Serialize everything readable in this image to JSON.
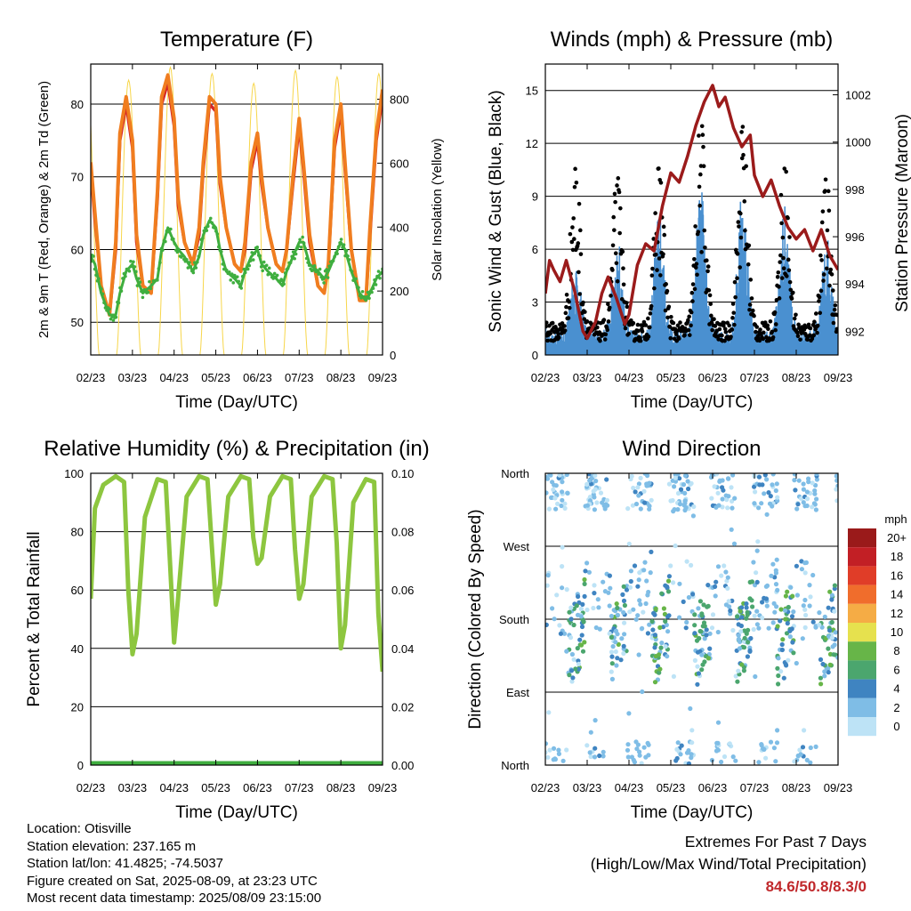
{
  "x_ticks": [
    "02/23",
    "03/23",
    "04/23",
    "05/23",
    "06/23",
    "07/23",
    "08/23",
    "09/23"
  ],
  "colors": {
    "temp_2m": "#d42525",
    "temp_9m": "#f07d1f",
    "dewpoint": "#3fae3f",
    "solar": "#f7d64a",
    "wind": "#4a90d0",
    "gust": "#000000",
    "pressure": "#9b1b1b",
    "rh": "#8dc63f",
    "rain": "#3fae3f"
  },
  "chart_data": [
    {
      "type": "line",
      "title": "Temperature (F)",
      "xlabel": "Time (Day/UTC)",
      "ylabel": "2m & 9m T (Red, Orange) & 2m Td (Green)",
      "y2label": "Solar Insolation (Yellow)",
      "ylim": [
        45.5,
        85.5
      ],
      "y2lim": [
        0,
        910
      ],
      "yticks": [
        50,
        60,
        70,
        80
      ],
      "y2ticks": [
        0,
        200,
        400,
        600,
        800
      ],
      "x": [
        0,
        0.1,
        0.25,
        0.45,
        0.6,
        0.7,
        0.85,
        1,
        1.1,
        1.25,
        1.45,
        1.6,
        1.7,
        1.85,
        2,
        2.1,
        2.25,
        2.45,
        2.6,
        2.7,
        2.85,
        3,
        3.1,
        3.25,
        3.45,
        3.6,
        3.7,
        3.85,
        4,
        4.1,
        4.25,
        4.45,
        4.6,
        4.7,
        4.85,
        5,
        5.1,
        5.25,
        5.45,
        5.6,
        5.7,
        5.85,
        6,
        6.1,
        6.25,
        6.45,
        6.6,
        6.7,
        6.85,
        7
      ],
      "series": [
        {
          "name": "2m T",
          "values": [
            72,
            65,
            55,
            51,
            61,
            76,
            81,
            75,
            62,
            55,
            54,
            68,
            81,
            84,
            78,
            67,
            61,
            58,
            63,
            72,
            81,
            80,
            70,
            63,
            58,
            57,
            61,
            72,
            76,
            70,
            63,
            58,
            57,
            60,
            70,
            78,
            72,
            62,
            55,
            54,
            58,
            75,
            80,
            72,
            60,
            53,
            53,
            63,
            76,
            82
          ]
        },
        {
          "name": "9m T",
          "values": [
            71,
            64,
            55,
            51,
            60,
            75,
            80,
            74,
            61,
            55,
            54,
            67,
            80,
            83,
            77,
            66,
            61,
            58,
            62,
            71,
            80,
            79,
            69,
            63,
            58,
            57,
            60,
            71,
            75,
            69,
            63,
            58,
            57,
            60,
            69,
            77,
            71,
            61,
            55,
            54,
            58,
            74,
            79,
            71,
            60,
            53,
            53,
            62,
            75,
            81
          ]
        },
        {
          "name": "2m Td",
          "values": [
            59,
            58,
            54,
            51,
            51,
            54,
            57,
            58,
            56,
            54,
            55,
            56,
            60,
            63,
            61,
            60,
            59,
            57,
            59,
            62,
            64,
            63,
            60,
            57,
            56,
            55,
            57,
            59,
            60,
            58,
            57,
            56,
            55,
            57,
            59,
            61,
            61,
            58,
            57,
            56,
            57,
            59,
            61,
            60,
            57,
            54,
            53,
            54,
            56,
            57
          ]
        }
      ]
    },
    {
      "type": "line",
      "title": "Winds (mph) & Pressure (mb)",
      "xlabel": "Time (Day/UTC)",
      "ylabel": "Sonic Wind & Gust (Blue, Black)",
      "y2label": "Station Pressure (Maroon)",
      "ylim": [
        0,
        16.5
      ],
      "y2lim": [
        991,
        1003.3
      ],
      "yticks": [
        0,
        3,
        6,
        9,
        12,
        15
      ],
      "y2ticks": [
        992,
        994,
        996,
        998,
        1000,
        1002
      ],
      "pressure": {
        "x": [
          0,
          0.1,
          0.2,
          0.35,
          0.5,
          0.7,
          0.9,
          1,
          1.2,
          1.35,
          1.5,
          1.7,
          1.9,
          2,
          2.2,
          2.4,
          2.6,
          2.8,
          3,
          3.2,
          3.4,
          3.6,
          3.8,
          4,
          4.15,
          4.3,
          4.5,
          4.7,
          4.9,
          5,
          5.2,
          5.4,
          5.6,
          5.8,
          6,
          6.2,
          6.4,
          6.6,
          6.8,
          7
        ],
        "values": [
          993.6,
          995,
          994.6,
          994.1,
          995,
          993.7,
          992,
          991.7,
          992.4,
          993.6,
          994.3,
          993.4,
          992.3,
          992.7,
          994.8,
          995.7,
          995.4,
          997.3,
          998.7,
          998.3,
          999.4,
          1000.7,
          1001.7,
          1002.4,
          1001.5,
          1001.9,
          1000.6,
          999.8,
          1000.3,
          998.6,
          997.7,
          998.4,
          997.3,
          996.4,
          995.9,
          996.3,
          995.4,
          996.3,
          995.2,
          994.6
        ]
      },
      "wind_day_peaks": [
        5,
        6,
        7,
        8.5,
        8.5,
        7.5,
        6,
        6
      ],
      "gust_day_peaks": [
        10,
        9,
        10,
        12,
        12,
        10,
        9,
        8
      ]
    },
    {
      "type": "line",
      "title": "Relative Humidity (%) & Precipitation (in)",
      "xlabel": "Time (Day/UTC)",
      "ylabel": "Percent & Total Rainfall",
      "ylim": [
        0,
        100
      ],
      "y2lim": [
        0,
        0.1
      ],
      "yticks": [
        0,
        20,
        40,
        60,
        80,
        100
      ],
      "y2ticks": [
        "0.00",
        "0.02",
        "0.04",
        "0.06",
        "0.08",
        "0.10"
      ],
      "x": [
        0,
        0.1,
        0.3,
        0.6,
        0.8,
        0.9,
        1,
        1.1,
        1.3,
        1.6,
        1.8,
        1.9,
        2,
        2.1,
        2.3,
        2.6,
        2.8,
        2.9,
        3,
        3.1,
        3.3,
        3.6,
        3.8,
        3.9,
        4,
        4.1,
        4.3,
        4.6,
        4.8,
        4.9,
        5,
        5.1,
        5.3,
        5.6,
        5.8,
        5.9,
        6,
        6.1,
        6.3,
        6.6,
        6.8,
        6.9,
        7
      ],
      "series": [
        {
          "name": "RH",
          "values": [
            57,
            88,
            96,
            99,
            97,
            60,
            38,
            45,
            85,
            98,
            97,
            70,
            42,
            58,
            92,
            99,
            98,
            76,
            55,
            62,
            92,
            99,
            98,
            78,
            69,
            71,
            92,
            99,
            98,
            74,
            57,
            62,
            92,
            99,
            98,
            76,
            40,
            48,
            90,
            98,
            97,
            52,
            32
          ]
        },
        {
          "name": "Rainfall",
          "values": [
            0,
            0,
            0,
            0,
            0,
            0,
            0,
            0,
            0,
            0,
            0,
            0,
            0,
            0,
            0,
            0,
            0,
            0,
            0,
            0,
            0,
            0,
            0,
            0,
            0,
            0,
            0,
            0,
            0,
            0,
            0,
            0,
            0,
            0,
            0,
            0,
            0,
            0,
            0,
            0,
            0,
            0,
            0
          ]
        }
      ]
    },
    {
      "type": "scatter",
      "title": "Wind Direction",
      "xlabel": "Time (Day/UTC)",
      "ylabel": "Direction (Colored By Speed)",
      "yticks": [
        "North",
        "East",
        "South",
        "West",
        "North"
      ],
      "legend_title": "mph",
      "legend_labels": [
        "0",
        "2",
        "4",
        "6",
        "8",
        "10",
        "12",
        "14",
        "16",
        "18",
        "20+"
      ],
      "legend_colors": [
        "#bde3f6",
        "#7fbde6",
        "#3f84c1",
        "#4ba66e",
        "#67b548",
        "#e6e14e",
        "#f5ac45",
        "#f06d2c",
        "#e03d28",
        "#c21f25",
        "#9a1a1a"
      ],
      "legend_placement": "right"
    }
  ],
  "footer": {
    "location": "Location: Otisville",
    "elevation": "Station elevation: 237.165 m",
    "latlon": "Station lat/lon: 41.4825; -74.5037",
    "created": "Figure created on Sat, 2025-08-09, at 23:23 UTC",
    "recent": "Most recent data timestamp: 2025/08/09 23:15:00"
  },
  "extremes": {
    "line1": "Extremes For Past 7 Days",
    "line2": "(High/Low/Max Wind/Total Precipitation)",
    "value": "84.6/50.8/8.3/0"
  }
}
